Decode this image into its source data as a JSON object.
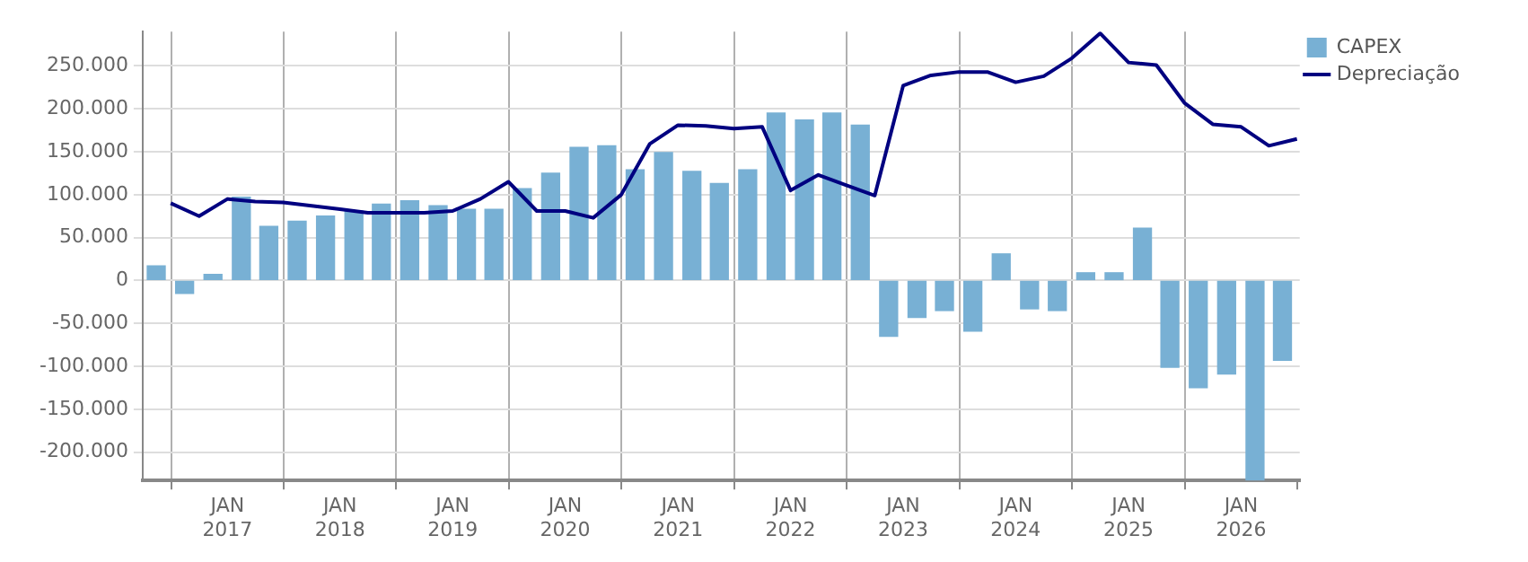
{
  "chart_data": {
    "type": "bar",
    "series": [
      {
        "name": "CAPEX",
        "color": "#78b0d4",
        "x": [
          "2016-05-15",
          "2016-08-15",
          "2016-11-15",
          "2017-02-15",
          "2017-05-15",
          "2017-08-15",
          "2017-11-15",
          "2018-02-15",
          "2018-05-15",
          "2018-08-15",
          "2018-11-15",
          "2019-02-15",
          "2019-05-15",
          "2019-08-15",
          "2019-11-15",
          "2020-02-15",
          "2020-05-15",
          "2020-08-15",
          "2020-11-15",
          "2021-02-15",
          "2021-05-15",
          "2021-08-15",
          "2021-11-15",
          "2022-02-15",
          "2022-05-15",
          "2022-08-15",
          "2022-11-15",
          "2023-02-15",
          "2023-05-15",
          "2023-08-15",
          "2023-11-15",
          "2024-02-15",
          "2024-05-15",
          "2024-08-15",
          "2024-11-15",
          "2025-02-15",
          "2025-05-15",
          "2025-08-15",
          "2025-11-15",
          "2026-02-15",
          "2026-05-15"
        ],
        "values": [
          17000,
          -15000,
          7000,
          97000,
          63000,
          69000,
          75000,
          81000,
          89000,
          93000,
          87000,
          83000,
          83000,
          107000,
          125000,
          155000,
          157000,
          129000,
          149000,
          127000,
          113000,
          129000,
          195000,
          187000,
          195000,
          181000,
          -65000,
          -43000,
          -35000,
          -59000,
          31000,
          -33000,
          -35000,
          9000,
          9000,
          61000,
          -101000,
          -125000,
          -109000,
          -233000,
          -93000
        ]
      },
      {
        "name": "Depreciação",
        "type": "line",
        "color": "#000080",
        "x": [
          "2016-07-01",
          "2016-10-01",
          "2017-01-01",
          "2017-04-01",
          "2017-07-01",
          "2017-10-01",
          "2018-01-01",
          "2018-04-01",
          "2018-07-01",
          "2018-10-01",
          "2019-01-01",
          "2019-04-01",
          "2019-07-01",
          "2019-10-01",
          "2020-01-01",
          "2020-04-01",
          "2020-07-01",
          "2020-10-01",
          "2021-01-01",
          "2021-04-01",
          "2021-07-01",
          "2021-10-01",
          "2022-01-01",
          "2022-04-01",
          "2022-07-01",
          "2022-10-01",
          "2023-01-01",
          "2023-04-01",
          "2023-07-01",
          "2023-10-01",
          "2024-01-01",
          "2024-04-01",
          "2024-07-01",
          "2024-10-01",
          "2025-01-01",
          "2025-04-01",
          "2025-07-01",
          "2025-10-01",
          "2026-01-01",
          "2026-04-01",
          "2026-07-01"
        ],
        "values": [
          90000,
          75000,
          95000,
          92000,
          91000,
          87000,
          83000,
          79000,
          79000,
          79000,
          81000,
          95000,
          115000,
          81000,
          81000,
          73000,
          100000,
          159000,
          181000,
          180000,
          177000,
          179000,
          105000,
          123000,
          111000,
          99000,
          227000,
          239000,
          243000,
          243000,
          231000,
          238000,
          259000,
          288000,
          254000,
          251000,
          207000,
          182000,
          179000,
          157000,
          165000
        ]
      }
    ],
    "xlim": [
      "2016-04-01",
      "2026-07-10"
    ],
    "xticks": [
      {
        "value": "2017-01-01",
        "label": "JAN 2017"
      },
      {
        "value": "2018-01-01",
        "label": "JAN 2018"
      },
      {
        "value": "2019-01-01",
        "label": "JAN 2019"
      },
      {
        "value": "2020-01-01",
        "label": "JAN 2020"
      },
      {
        "value": "2021-01-01",
        "label": "JAN 2021"
      },
      {
        "value": "2022-01-01",
        "label": "JAN 2022"
      },
      {
        "value": "2023-01-01",
        "label": "JAN 2023"
      },
      {
        "value": "2024-01-01",
        "label": "JAN 2024"
      },
      {
        "value": "2025-01-01",
        "label": "JAN 2025"
      },
      {
        "value": "2026-01-01",
        "label": "JAN 2026"
      }
    ],
    "ylim": [
      -233000,
      290000
    ],
    "yticks": [
      {
        "value": -200000,
        "label": "-200.000"
      },
      {
        "value": -150000,
        "label": "-150.000"
      },
      {
        "value": -100000,
        "label": "-100.000"
      },
      {
        "value": -50000,
        "label": "-50.000"
      },
      {
        "value": 0,
        "label": "0"
      },
      {
        "value": 50000,
        "label": "50.000"
      },
      {
        "value": 100000,
        "label": "100.000"
      },
      {
        "value": 150000,
        "label": "150.000"
      },
      {
        "value": 200000,
        "label": "200.000"
      },
      {
        "value": 250000,
        "label": "250.000"
      }
    ],
    "grid": true,
    "legend": "top right"
  }
}
